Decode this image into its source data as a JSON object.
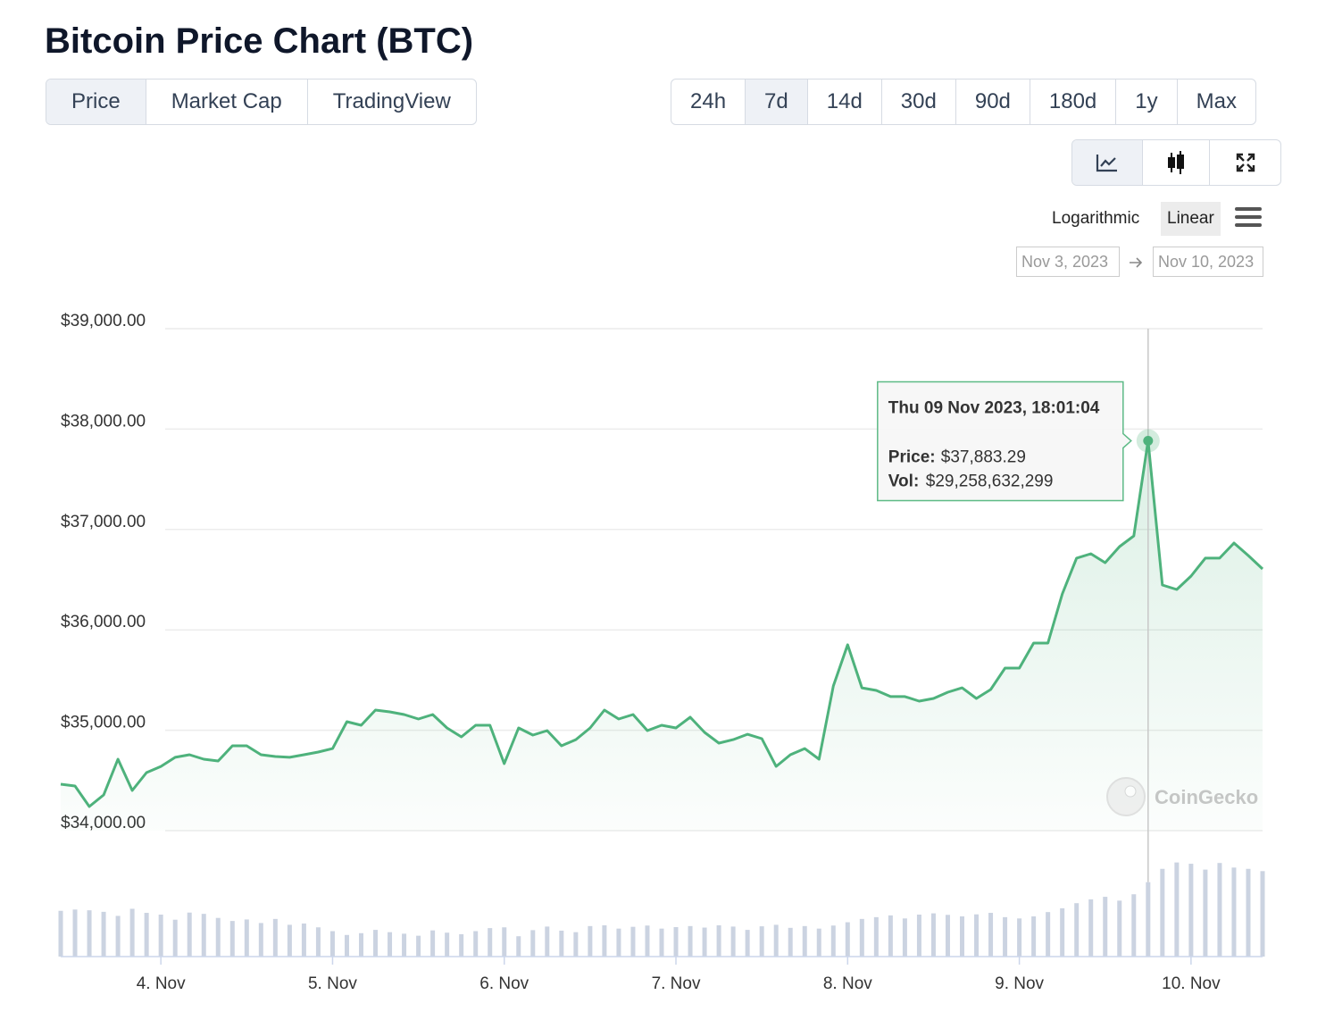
{
  "header": {
    "title": "Bitcoin Price Chart (BTC)"
  },
  "tabs": {
    "items": [
      "Price",
      "Market Cap",
      "TradingView"
    ],
    "selected": 0
  },
  "ranges": {
    "items": [
      "24h",
      "7d",
      "14d",
      "30d",
      "90d",
      "180d",
      "1y",
      "Max"
    ],
    "selected": 1
  },
  "scale": {
    "options": [
      "Logarithmic",
      "Linear"
    ],
    "selected": 1
  },
  "date_range": [
    "Nov 3, 2023",
    "Nov 10, 2023"
  ],
  "watermark": "CoinGecko",
  "chart_data": {
    "type": "line",
    "x": [
      "2023-11-03 10:00",
      "2023-11-03 12:00",
      "2023-11-03 14:00",
      "2023-11-03 16:00",
      "2023-11-03 18:00",
      "2023-11-03 20:00",
      "2023-11-03 22:00",
      "2023-11-04 00:00",
      "2023-11-04 02:00",
      "2023-11-04 04:00",
      "2023-11-04 06:00",
      "2023-11-04 08:00",
      "2023-11-04 10:00",
      "2023-11-04 12:00",
      "2023-11-04 14:00",
      "2023-11-04 16:00",
      "2023-11-04 18:00",
      "2023-11-04 20:00",
      "2023-11-04 22:00",
      "2023-11-05 00:00",
      "2023-11-05 02:00",
      "2023-11-05 04:00",
      "2023-11-05 06:00",
      "2023-11-05 08:00",
      "2023-11-05 10:00",
      "2023-11-05 12:00",
      "2023-11-05 14:00",
      "2023-11-05 16:00",
      "2023-11-05 18:00",
      "2023-11-05 20:00",
      "2023-11-05 22:00",
      "2023-11-06 00:00",
      "2023-11-06 02:00",
      "2023-11-06 04:00",
      "2023-11-06 06:00",
      "2023-11-06 08:00",
      "2023-11-06 10:00",
      "2023-11-06 12:00",
      "2023-11-06 14:00",
      "2023-11-06 16:00",
      "2023-11-06 18:00",
      "2023-11-06 20:00",
      "2023-11-06 22:00",
      "2023-11-07 00:00",
      "2023-11-07 02:00",
      "2023-11-07 04:00",
      "2023-11-07 06:00",
      "2023-11-07 08:00",
      "2023-11-07 10:00",
      "2023-11-07 12:00",
      "2023-11-07 14:00",
      "2023-11-07 16:00",
      "2023-11-07 18:00",
      "2023-11-07 20:00",
      "2023-11-07 22:00",
      "2023-11-08 00:00",
      "2023-11-08 02:00",
      "2023-11-08 04:00",
      "2023-11-08 06:00",
      "2023-11-08 08:00",
      "2023-11-08 10:00",
      "2023-11-08 12:00",
      "2023-11-08 14:00",
      "2023-11-08 16:00",
      "2023-11-08 18:00",
      "2023-11-08 20:00",
      "2023-11-08 22:00",
      "2023-11-09 00:00",
      "2023-11-09 02:00",
      "2023-11-09 04:00",
      "2023-11-09 06:00",
      "2023-11-09 08:00",
      "2023-11-09 10:00",
      "2023-11-09 12:00",
      "2023-11-09 14:00",
      "2023-11-09 16:00",
      "2023-11-09 18:00",
      "2023-11-09 20:00",
      "2023-11-09 22:00",
      "2023-11-10 00:00",
      "2023-11-10 02:00",
      "2023-11-10 04:00",
      "2023-11-10 06:00",
      "2023-11-10 08:00",
      "2023-11-10 10:00"
    ],
    "series": [
      {
        "color": "#4eb27c",
        "values": [
          34463,
          34445,
          34240,
          34356,
          34712,
          34400,
          34578,
          34640,
          34730,
          34756,
          34712,
          34694,
          34845,
          34845,
          34756,
          34738,
          34730,
          34756,
          34783,
          34818,
          35085,
          35050,
          35201,
          35183,
          35157,
          35112,
          35157,
          35023,
          34934,
          35050,
          35050,
          34667,
          35023,
          34952,
          34996,
          34845,
          34907,
          35023,
          35201,
          35112,
          35157,
          34996,
          35050,
          35023,
          35130,
          34979,
          34872,
          34907,
          34960,
          34916,
          34640,
          34756,
          34818,
          34712,
          35441,
          35851,
          35423,
          35397,
          35335,
          35335,
          35290,
          35317,
          35379,
          35423,
          35317,
          35406,
          35619,
          35619,
          35868,
          35868,
          36358,
          36714,
          36758,
          36669,
          36829,
          36936,
          37883.29,
          36447,
          36402,
          36536,
          36714,
          36714,
          36865,
          36740,
          36607
        ]
      },
      {
        "color": "#cbd3e1",
        "axis": "y2",
        "values": [
          18000000000,
          18500000000,
          18200000000,
          17600000000,
          16000000000,
          18800000000,
          17200000000,
          16500000000,
          14500000000,
          17300000000,
          16800000000,
          15200000000,
          14000000000,
          14600000000,
          13200000000,
          14800000000,
          12500000000,
          13000000000,
          11500000000,
          10000000000,
          8500000000,
          9200000000,
          10500000000,
          9600000000,
          9000000000,
          8200000000,
          10300000000,
          9400000000,
          8800000000,
          10000000000,
          11200000000,
          11500000000,
          8000000000,
          10400000000,
          11800000000,
          10200000000,
          9600000000,
          12000000000,
          12300000000,
          11000000000,
          11700000000,
          12200000000,
          11000000000,
          11600000000,
          12000000000,
          11400000000,
          12300000000,
          11800000000,
          10500000000,
          11900000000,
          12500000000,
          11300000000,
          12000000000,
          11000000000,
          12200000000,
          13500000000,
          14800000000,
          15500000000,
          16200000000,
          15000000000,
          16500000000,
          17000000000,
          16400000000,
          15800000000,
          16600000000,
          17200000000,
          15500000000,
          15000000000,
          15800000000,
          17500000000,
          19000000000,
          21000000000,
          22500000000,
          23500000000,
          22000000000,
          24500000000,
          29258632299,
          34500000000,
          37000000000,
          36500000000,
          34200000000,
          36800000000,
          35000000000,
          34500000000,
          33600000000
        ]
      }
    ],
    "xlim": [
      "2023-11-03 10:00",
      "2023-11-10 10:00"
    ],
    "xticks": [
      {
        "value": "2023-11-04",
        "label": "4. Nov"
      },
      {
        "value": "2023-11-05",
        "label": "5. Nov"
      },
      {
        "value": "2023-11-06",
        "label": "6. Nov"
      },
      {
        "value": "2023-11-07",
        "label": "7. Nov"
      },
      {
        "value": "2023-11-08",
        "label": "8. Nov"
      },
      {
        "value": "2023-11-09",
        "label": "9. Nov"
      },
      {
        "value": "2023-11-10",
        "label": "10. Nov"
      }
    ],
    "ylim": [
      34000,
      39000
    ],
    "yticks": [
      {
        "value": 34000,
        "label": "$34,000.00"
      },
      {
        "value": 35000,
        "label": "$35,000.00"
      },
      {
        "value": 36000,
        "label": "$36,000.00"
      },
      {
        "value": 37000,
        "label": "$37,000.00"
      },
      {
        "value": 38000,
        "label": "$38,000.00"
      },
      {
        "value": 39000,
        "label": "$39,000.00"
      }
    ],
    "y2lim": [
      0,
      46000000000
    ],
    "grid": true,
    "tooltip": {
      "date": "Thu 09 Nov 2023, 18:01:04",
      "price_label": "Price:",
      "price": "$37,883.29",
      "vol_label": "Vol:",
      "vol": "$29,258,632,299"
    }
  }
}
